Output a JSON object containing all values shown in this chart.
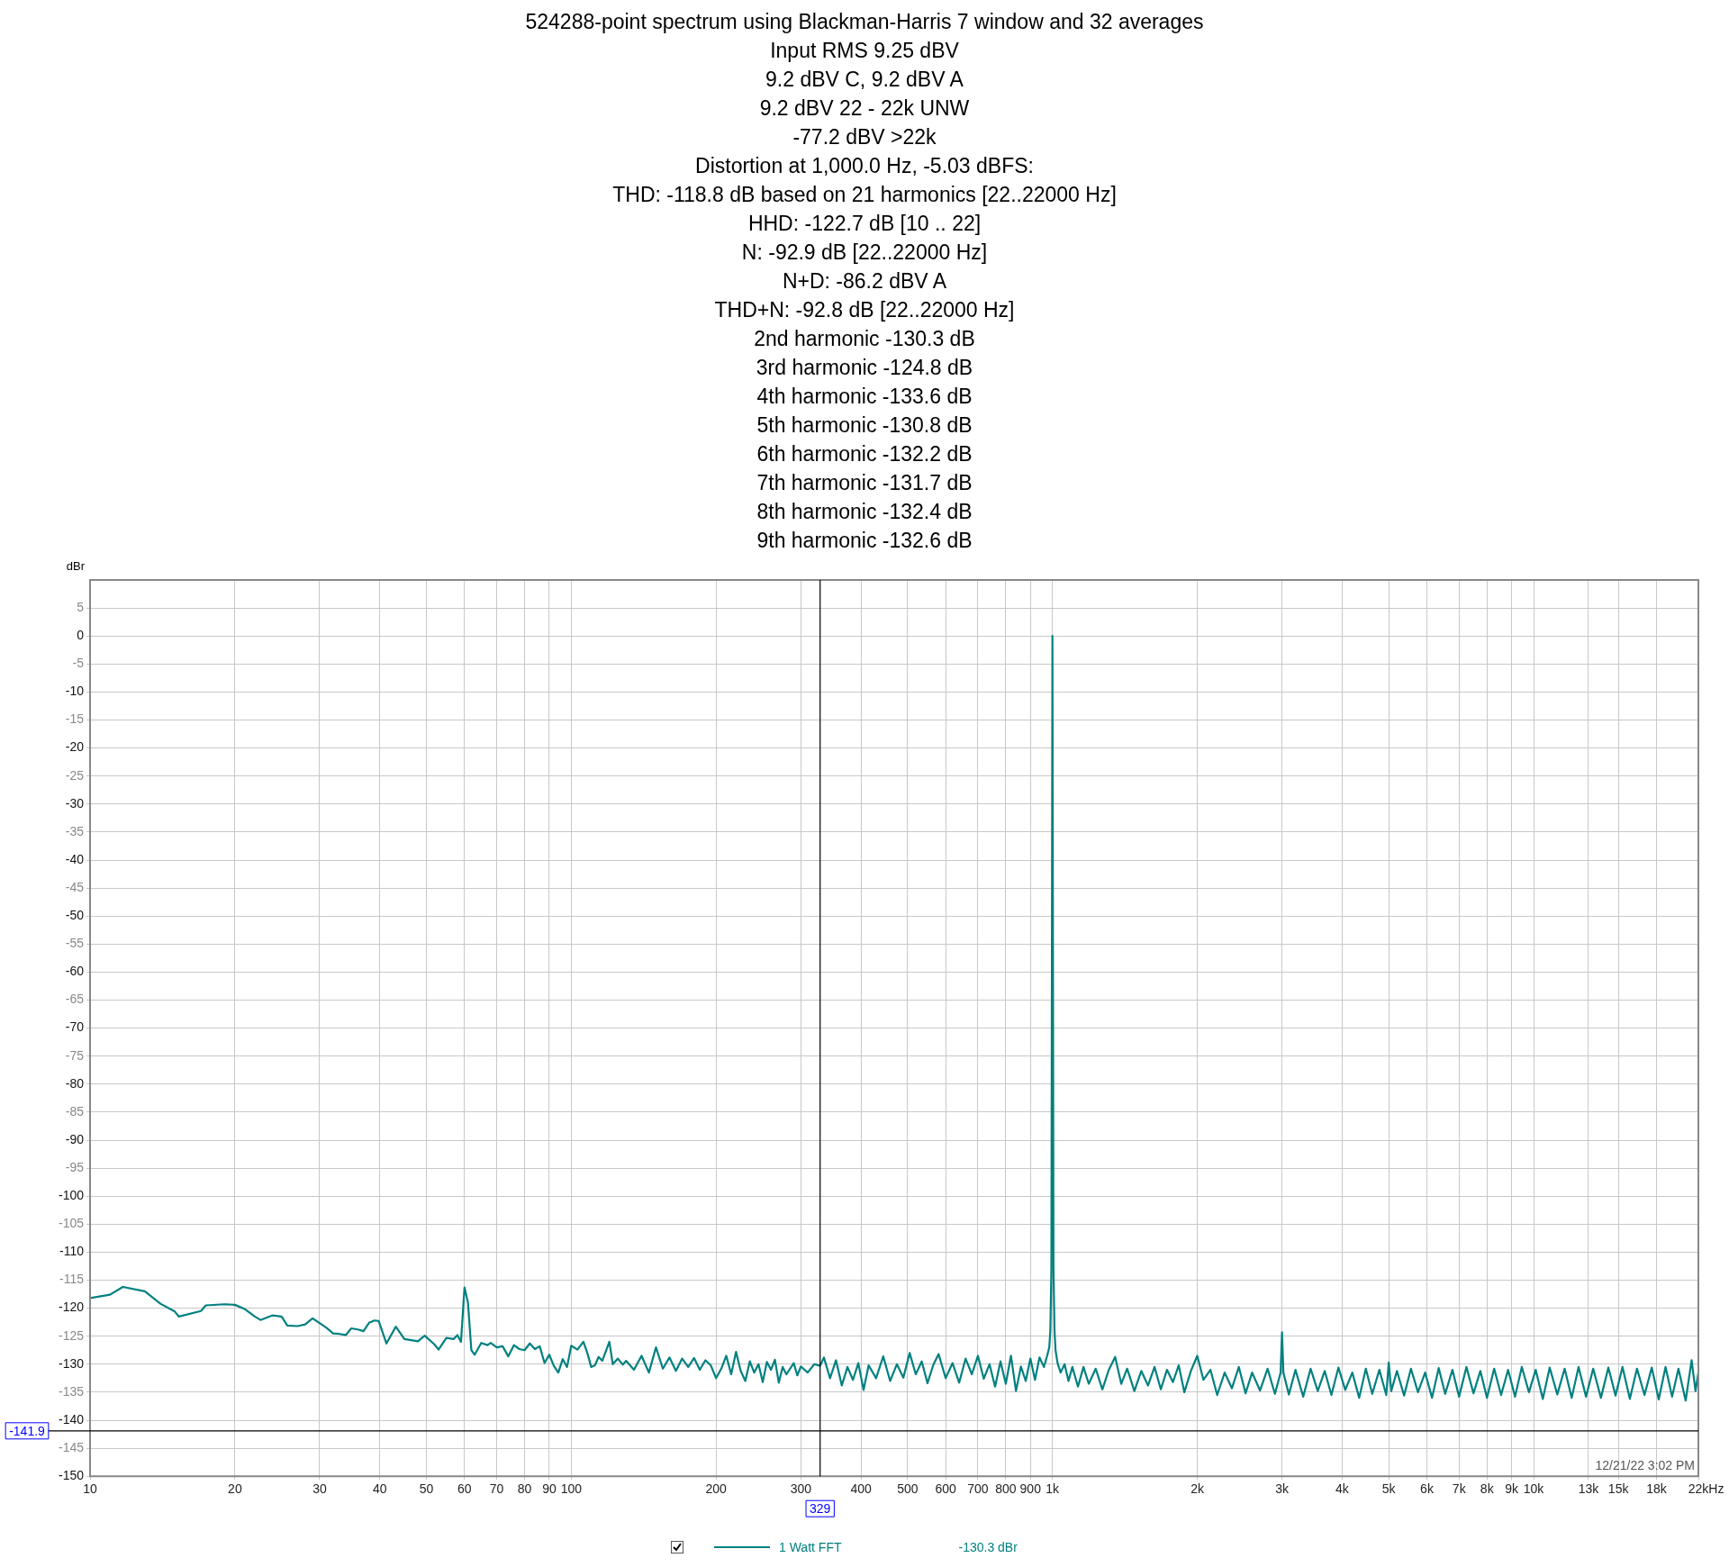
{
  "chart_data": {
    "type": "line",
    "title": "524288-point spectrum using Blackman-Harris 7 window and 32 averages",
    "subtitle": "Input RMS 9.25 dBV\n9.2 dBV C, 9.2 dBV A\n9.2 dBV 22 - 22k UNW\n-77.2 dBV >22k\nDistortion at 1,000.0 Hz, -5.03 dBFS:\nTHD: -118.8 dB based on 21 harmonics [22..22000 Hz]\nHHD: -122.7 dB [10 .. 22]\nN: -92.9 dB [22..22000 Hz]\nN+D: -86.2 dBV A\nTHD+N: -92.8 dB [22..22000 Hz]\n2nd harmonic -130.3 dB\n3rd harmonic -124.8 dB\n4th harmonic -133.6 dB\n5th harmonic -130.8 dB\n6th harmonic -132.2 dB\n7th harmonic -131.7 dB\n8th harmonic -132.4 dB\n9th harmonic -132.6 dB",
    "ylabel": "dBr",
    "log": "x",
    "xlim": [
      10,
      22000
    ],
    "ylim": [
      -150,
      10
    ],
    "xticks": [
      10,
      20,
      30,
      40,
      50,
      60,
      70,
      80,
      90,
      100,
      200,
      300,
      400,
      500,
      600,
      700,
      800,
      900,
      {
        "value": 1000,
        "label": "1k"
      },
      {
        "value": 2000,
        "label": "2k"
      },
      {
        "value": 3000,
        "label": "3k"
      },
      {
        "value": 4000,
        "label": "4k"
      },
      {
        "value": 5000,
        "label": "5k"
      },
      {
        "value": 6000,
        "label": "6k"
      },
      {
        "value": 7000,
        "label": "7k"
      },
      {
        "value": 8000,
        "label": "8k"
      },
      {
        "value": 9000,
        "label": "9k"
      },
      {
        "value": 10000,
        "label": "10k"
      },
      {
        "value": 13000,
        "label": "13k"
      },
      {
        "value": 15000,
        "label": "15k"
      },
      {
        "value": 18000,
        "label": "18k"
      },
      {
        "value": 22000,
        "label": "22k"
      }
    ],
    "xlabel": "Hz",
    "yticks": [
      -150,
      -145,
      -140,
      -135,
      -130,
      -125,
      -120,
      -115,
      -110,
      -105,
      -100,
      -95,
      -90,
      -85,
      -80,
      -75,
      -70,
      -65,
      -60,
      -55,
      -50,
      -45,
      -40,
      -35,
      -30,
      -25,
      -20,
      -15,
      -10,
      -5,
      0,
      5
    ],
    "grid": true,
    "legend": "bottom",
    "ref_lines": [
      {
        "axis": "x",
        "value": 329,
        "label": "329",
        "color": "#000000"
      },
      {
        "axis": "y",
        "value": -141.9,
        "label": "-141.9",
        "color": "#000000"
      }
    ],
    "annotations": [
      "12/21/22 3:02 PM",
      "-130.3 dBr"
    ],
    "series": [
      {
        "name": "1 Watt FFT",
        "color": "#008080",
        "x": [
          10,
          11,
          11.7,
          13,
          14,
          15,
          15.3,
          17,
          17.4,
          19,
          20,
          21,
          22,
          22.6,
          23.9,
          25,
          25.7,
          27,
          28,
          29,
          31,
          32,
          33,
          34,
          34.9,
          36,
          37,
          38,
          39,
          39.8,
          41.3,
          43.2,
          45,
          48,
          49.6,
          52,
          53,
          55,
          57,
          58,
          59,
          60,
          61,
          62,
          63,
          65,
          67,
          68,
          70,
          72,
          74,
          76,
          78,
          80,
          82,
          84,
          86,
          88,
          90,
          92,
          94,
          96,
          98,
          100,
          103,
          106,
          108,
          110,
          112,
          114,
          116,
          120,
          122,
          125,
          128,
          130,
          135,
          140,
          145,
          150,
          155,
          160,
          165,
          170,
          175,
          180,
          185,
          190,
          195,
          200,
          205,
          210,
          215,
          220,
          225,
          230,
          235,
          240,
          245,
          250,
          255,
          260,
          265,
          270,
          275,
          280,
          290,
          295,
          300,
          310,
          320,
          329,
          335,
          345,
          355,
          365,
          375,
          385,
          395,
          405,
          415,
          430,
          445,
          460,
          475,
          490,
          505,
          520,
          535,
          550,
          565,
          580,
          600,
          620,
          640,
          660,
          680,
          700,
          720,
          740,
          760,
          780,
          800,
          820,
          840,
          860,
          880,
          900,
          920,
          940,
          960,
          975,
          985,
          990,
          995,
          1000,
          1005,
          1010,
          1015,
          1025,
          1040,
          1060,
          1080,
          1100,
          1130,
          1160,
          1190,
          1230,
          1270,
          1310,
          1350,
          1390,
          1430,
          1480,
          1530,
          1580,
          1630,
          1680,
          1730,
          1780,
          1830,
          1880,
          1940,
          2000,
          2060,
          2130,
          2200,
          2280,
          2360,
          2440,
          2520,
          2600,
          2700,
          2800,
          2900,
          2980,
          3000,
          3020,
          3100,
          3200,
          3320,
          3440,
          3560,
          3680,
          3800,
          3930,
          4060,
          4200,
          4340,
          4480,
          4620,
          4780,
          4940,
          5000,
          5060,
          5200,
          5380,
          5560,
          5750,
          5950,
          6150,
          6350,
          6550,
          6780,
          7000,
          7250,
          7500,
          7750,
          8000,
          8280,
          8560,
          8850,
          9150,
          9450,
          9780,
          10100,
          10450,
          10800,
          11200,
          11600,
          12000,
          12400,
          12850,
          13300,
          13800,
          14300,
          14800,
          15300,
          15850,
          16400,
          17000,
          17600,
          18200,
          18800,
          19400,
          20000,
          20700,
          21300,
          21700,
          22000
        ],
        "values": [
          -118.2,
          -117.6,
          -116.2,
          -117,
          -119.2,
          -120.6,
          -121.5,
          -120.5,
          -119.5,
          -119.3,
          -119.4,
          -120.2,
          -121.5,
          -122.1,
          -121.3,
          -121.5,
          -123.1,
          -123.2,
          -122.9,
          -121.8,
          -123.5,
          -124.5,
          -124.6,
          -124.8,
          -123.6,
          -123.8,
          -124.1,
          -122.6,
          -122.2,
          -122.3,
          -126.3,
          -123.3,
          -125.5,
          -125.9,
          -124.9,
          -126.5,
          -127.4,
          -125.3,
          -125.5,
          -124.8,
          -126,
          -116.3,
          -119,
          -127.5,
          -128.3,
          -126.2,
          -126.6,
          -126.2,
          -127,
          -126.8,
          -128.6,
          -126.6,
          -127.3,
          -127.5,
          -126.3,
          -127.3,
          -126.8,
          -129.8,
          -128.3,
          -130.3,
          -131.5,
          -129.1,
          -130.5,
          -126.7,
          -127.4,
          -126,
          -128,
          -130.5,
          -130.2,
          -128.7,
          -129.4,
          -126,
          -130,
          -129,
          -130.1,
          -129.4,
          -131,
          -128.5,
          -131.5,
          -127,
          -130.8,
          -128.8,
          -131.2,
          -129,
          -130.5,
          -128.9,
          -131,
          -129.3,
          -130.2,
          -132.5,
          -130.8,
          -128.5,
          -131.8,
          -127.8,
          -131.2,
          -133,
          -129.5,
          -131.5,
          -130,
          -133.2,
          -129.6,
          -131,
          -129.2,
          -133.3,
          -130.5,
          -131.8,
          -129.8,
          -132,
          -130.4,
          -131.5,
          -130,
          -130.3,
          -128.8,
          -132.5,
          -129.3,
          -133.8,
          -130.5,
          -132.8,
          -129.8,
          -134.6,
          -130.2,
          -132.5,
          -128.6,
          -133,
          -130,
          -132.4,
          -128,
          -131.8,
          -129.5,
          -133.4,
          -130.2,
          -128.2,
          -132.5,
          -129.8,
          -133.3,
          -129,
          -131.8,
          -128.5,
          -132.6,
          -130,
          -134,
          -129.5,
          -133.5,
          -128.5,
          -134.8,
          -130.4,
          -133,
          -129,
          -132.8,
          -128.8,
          -130.5,
          -128.5,
          -127,
          -124,
          -113,
          0,
          -113,
          -124,
          -127.5,
          -129.8,
          -131.5,
          -130,
          -133,
          -130.5,
          -134,
          -130.5,
          -133.5,
          -130.8,
          -134.5,
          -131,
          -128.7,
          -133.5,
          -130.8,
          -134.8,
          -131.2,
          -133.8,
          -130.5,
          -134.5,
          -131,
          -133.2,
          -130.2,
          -135,
          -131.2,
          -128.5,
          -132.8,
          -131,
          -135.5,
          -131.5,
          -134.3,
          -130.5,
          -135.2,
          -131.5,
          -134.7,
          -130.8,
          -135.3,
          -131.5,
          -124.3,
          -131.5,
          -135.4,
          -131,
          -135.8,
          -130.8,
          -134.8,
          -131.2,
          -135.5,
          -130.6,
          -134.6,
          -131.5,
          -136,
          -130.8,
          -135.3,
          -131,
          -135.5,
          -129.7,
          -134.8,
          -131.2,
          -135.6,
          -130.8,
          -135,
          -131.5,
          -136,
          -130.7,
          -135.3,
          -131,
          -135.8,
          -130.5,
          -135.2,
          -131.2,
          -136,
          -130.8,
          -135.5,
          -131,
          -135.8,
          -130.5,
          -135,
          -131,
          -136.2,
          -130.6,
          -135.4,
          -130.8,
          -136,
          -130.5,
          -135.8,
          -130.8,
          -136,
          -130.6,
          -135.6,
          -130.5,
          -136.2,
          -130.8,
          -135.5,
          -130.6,
          -136.3,
          -130.5,
          -135.8,
          -130.8,
          -136.5,
          -129.3,
          -134.8,
          -131.5
        ]
      }
    ]
  }
}
